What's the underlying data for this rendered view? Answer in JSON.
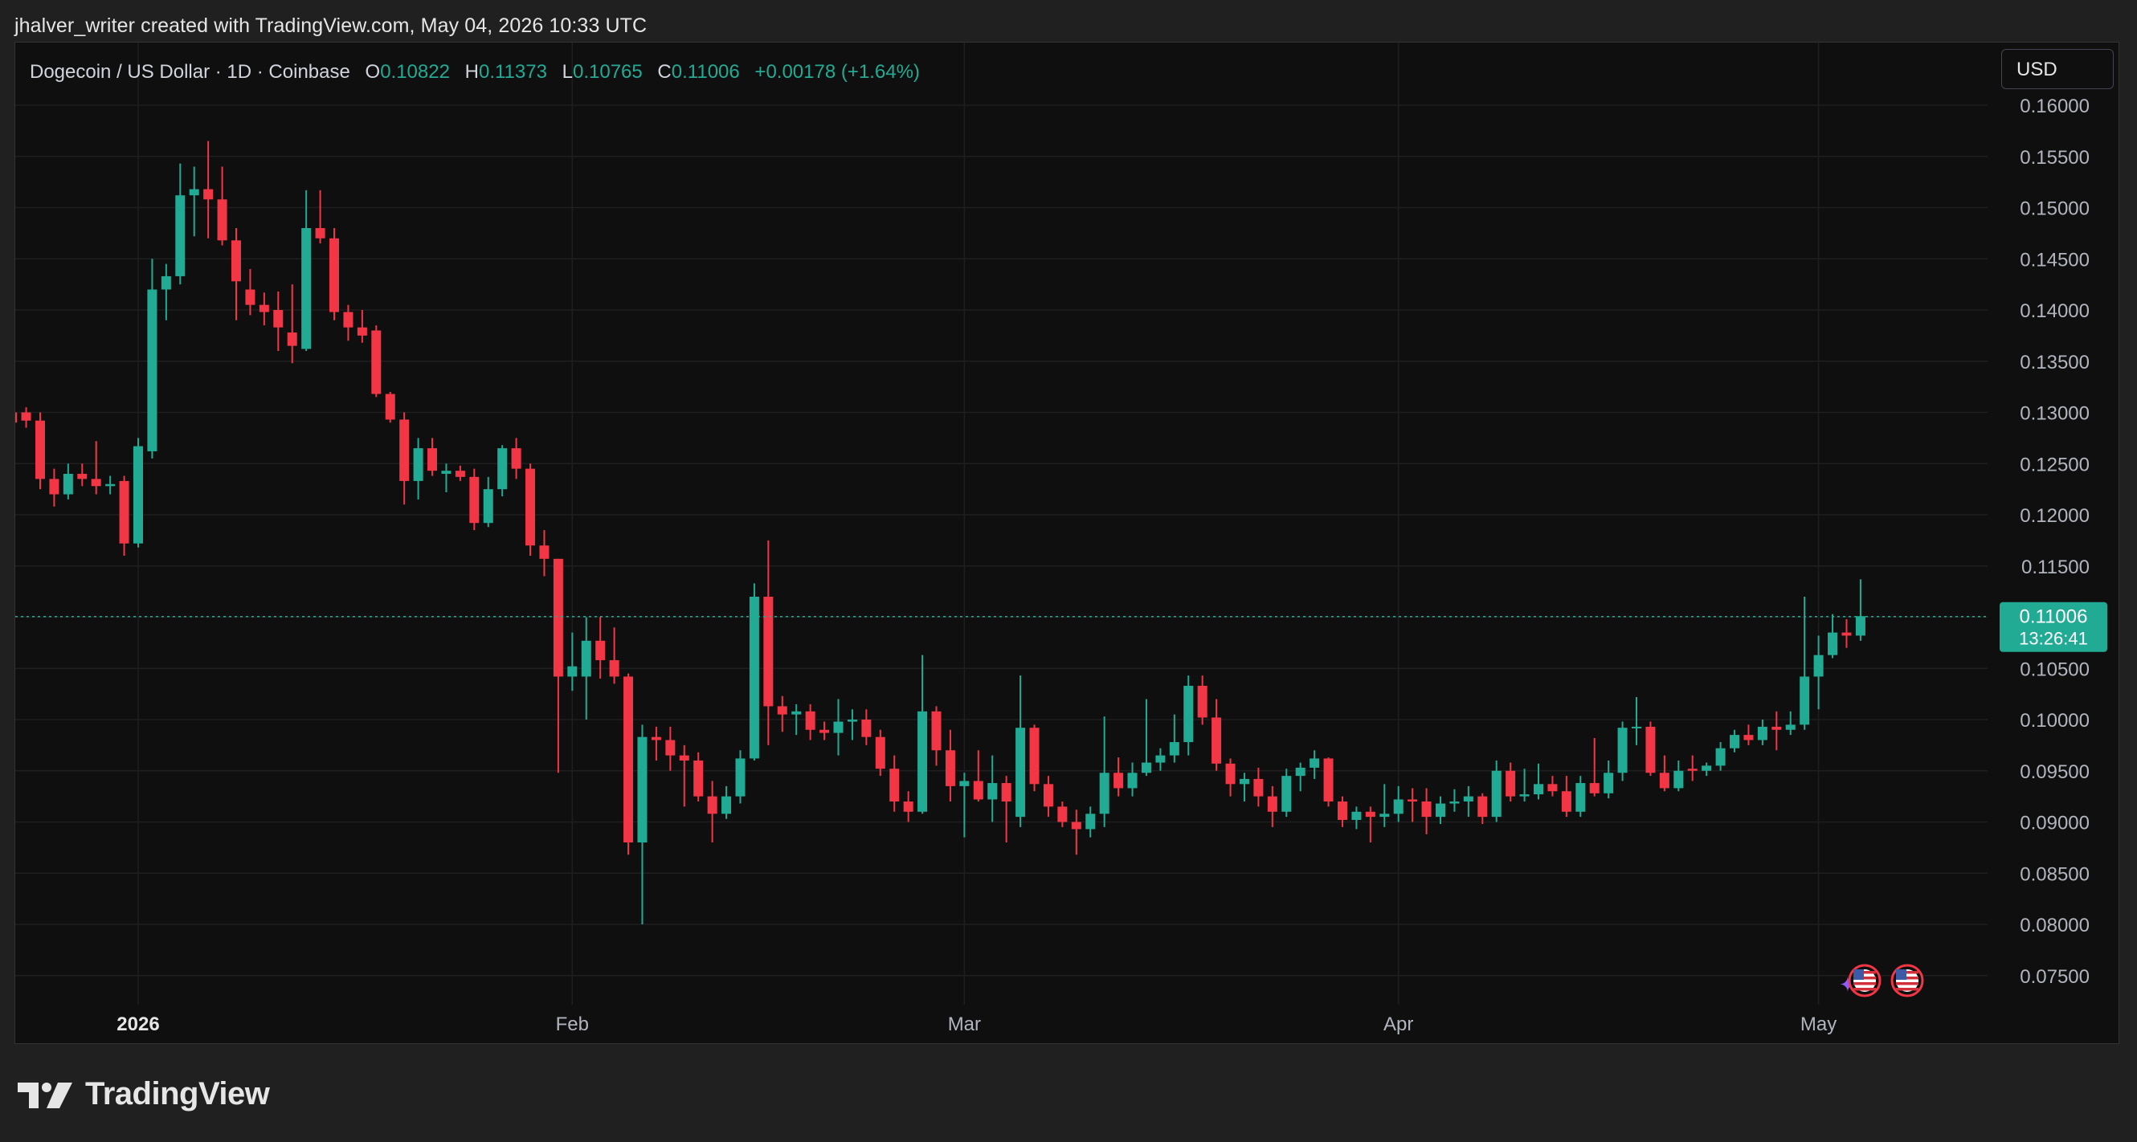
{
  "caption": "jhalver_writer created with TradingView.com, May 04, 2026 10:33 UTC",
  "legend": {
    "symbol": "Dogecoin / US Dollar · 1D · Coinbase",
    "o_label": "O",
    "o_value": "0.10822",
    "h_label": "H",
    "h_value": "0.11373",
    "l_label": "L",
    "l_value": "0.10765",
    "c_label": "C",
    "c_value": "0.11006",
    "change": "+0.00178 (+1.64%)"
  },
  "currency_button": "USD",
  "price_tag": {
    "price": "0.11006",
    "countdown": "13:26:41"
  },
  "brand": "TradingView",
  "colors": {
    "up": "#22ab94",
    "down": "#f23645",
    "background": "#0f0f0f",
    "grid": "#1f1f1f",
    "axis_text": "#b2b5be"
  },
  "chart_data": {
    "type": "candlestick",
    "title": "Dogecoin / US Dollar · 1D · Coinbase",
    "ylim": [
      0.073,
      0.164
    ],
    "y_ticks": [
      "0.16000",
      "0.15500",
      "0.15000",
      "0.14500",
      "0.14000",
      "0.13500",
      "0.13000",
      "0.12500",
      "0.12000",
      "0.11500",
      "0.11000",
      "0.10500",
      "0.10000",
      "0.09500",
      "0.09000",
      "0.08500",
      "0.08000",
      "0.07500"
    ],
    "x_labels": [
      {
        "label": "2026",
        "date": "2026-01-01",
        "bold": true
      },
      {
        "label": "Feb",
        "date": "2026-02-01",
        "bold": false
      },
      {
        "label": "Mar",
        "date": "2026-03-01",
        "bold": false
      },
      {
        "label": "Apr",
        "date": "2026-04-01",
        "bold": false
      },
      {
        "label": "May",
        "date": "2026-05-01",
        "bold": false
      }
    ],
    "last_price": 0.11006,
    "grid": true,
    "candles": [
      {
        "date": "2025-12-23",
        "o": 0.13,
        "h": 0.1325,
        "l": 0.1295,
        "c": 0.129
      },
      {
        "date": "2025-12-24",
        "o": 0.13,
        "h": 0.1305,
        "l": 0.1285,
        "c": 0.1292
      },
      {
        "date": "2025-12-25",
        "o": 0.1292,
        "h": 0.13,
        "l": 0.1225,
        "c": 0.1235
      },
      {
        "date": "2025-12-26",
        "o": 0.1235,
        "h": 0.1245,
        "l": 0.1208,
        "c": 0.122
      },
      {
        "date": "2025-12-27",
        "o": 0.122,
        "h": 0.125,
        "l": 0.1215,
        "c": 0.124
      },
      {
        "date": "2025-12-28",
        "o": 0.124,
        "h": 0.125,
        "l": 0.1228,
        "c": 0.1235
      },
      {
        "date": "2025-12-29",
        "o": 0.1235,
        "h": 0.1272,
        "l": 0.122,
        "c": 0.1228
      },
      {
        "date": "2025-12-30",
        "o": 0.1228,
        "h": 0.1238,
        "l": 0.122,
        "c": 0.123
      },
      {
        "date": "2025-12-31",
        "o": 0.1233,
        "h": 0.1238,
        "l": 0.116,
        "c": 0.1172
      },
      {
        "date": "2026-01-01",
        "o": 0.1172,
        "h": 0.1275,
        "l": 0.1168,
        "c": 0.1267
      },
      {
        "date": "2026-01-02",
        "o": 0.1262,
        "h": 0.145,
        "l": 0.1255,
        "c": 0.142
      },
      {
        "date": "2026-01-03",
        "o": 0.142,
        "h": 0.1445,
        "l": 0.139,
        "c": 0.1433
      },
      {
        "date": "2026-01-04",
        "o": 0.1433,
        "h": 0.1543,
        "l": 0.1425,
        "c": 0.1512
      },
      {
        "date": "2026-01-05",
        "o": 0.1512,
        "h": 0.154,
        "l": 0.1472,
        "c": 0.1518
      },
      {
        "date": "2026-01-06",
        "o": 0.1518,
        "h": 0.1565,
        "l": 0.147,
        "c": 0.1508
      },
      {
        "date": "2026-01-07",
        "o": 0.1508,
        "h": 0.154,
        "l": 0.1463,
        "c": 0.1468
      },
      {
        "date": "2026-01-08",
        "o": 0.1468,
        "h": 0.148,
        "l": 0.139,
        "c": 0.1428
      },
      {
        "date": "2026-01-09",
        "o": 0.142,
        "h": 0.144,
        "l": 0.1395,
        "c": 0.1405
      },
      {
        "date": "2026-01-10",
        "o": 0.1405,
        "h": 0.1417,
        "l": 0.1385,
        "c": 0.1398
      },
      {
        "date": "2026-01-11",
        "o": 0.14,
        "h": 0.1418,
        "l": 0.136,
        "c": 0.1383
      },
      {
        "date": "2026-01-12",
        "o": 0.1378,
        "h": 0.1425,
        "l": 0.1348,
        "c": 0.1365
      },
      {
        "date": "2026-01-13",
        "o": 0.1362,
        "h": 0.1517,
        "l": 0.136,
        "c": 0.148
      },
      {
        "date": "2026-01-14",
        "o": 0.148,
        "h": 0.1517,
        "l": 0.1465,
        "c": 0.147
      },
      {
        "date": "2026-01-15",
        "o": 0.147,
        "h": 0.148,
        "l": 0.139,
        "c": 0.1398
      },
      {
        "date": "2026-01-16",
        "o": 0.1398,
        "h": 0.1405,
        "l": 0.137,
        "c": 0.1383
      },
      {
        "date": "2026-01-17",
        "o": 0.1383,
        "h": 0.14,
        "l": 0.1368,
        "c": 0.1375
      },
      {
        "date": "2026-01-18",
        "o": 0.138,
        "h": 0.1385,
        "l": 0.1315,
        "c": 0.1318
      },
      {
        "date": "2026-01-19",
        "o": 0.1318,
        "h": 0.132,
        "l": 0.129,
        "c": 0.1293
      },
      {
        "date": "2026-01-20",
        "o": 0.1293,
        "h": 0.13,
        "l": 0.121,
        "c": 0.1233
      },
      {
        "date": "2026-01-21",
        "o": 0.1233,
        "h": 0.1275,
        "l": 0.1215,
        "c": 0.1265
      },
      {
        "date": "2026-01-22",
        "o": 0.1265,
        "h": 0.1275,
        "l": 0.1238,
        "c": 0.1243
      },
      {
        "date": "2026-01-23",
        "o": 0.124,
        "h": 0.125,
        "l": 0.1222,
        "c": 0.1243
      },
      {
        "date": "2026-01-24",
        "o": 0.1243,
        "h": 0.1248,
        "l": 0.1233,
        "c": 0.1237
      },
      {
        "date": "2026-01-25",
        "o": 0.1237,
        "h": 0.1245,
        "l": 0.1185,
        "c": 0.1192
      },
      {
        "date": "2026-01-26",
        "o": 0.1192,
        "h": 0.1237,
        "l": 0.1188,
        "c": 0.1225
      },
      {
        "date": "2026-01-27",
        "o": 0.1225,
        "h": 0.1268,
        "l": 0.1218,
        "c": 0.1265
      },
      {
        "date": "2026-01-28",
        "o": 0.1265,
        "h": 0.1275,
        "l": 0.1235,
        "c": 0.1245
      },
      {
        "date": "2026-01-29",
        "o": 0.1245,
        "h": 0.125,
        "l": 0.116,
        "c": 0.117
      },
      {
        "date": "2026-01-30",
        "o": 0.117,
        "h": 0.1185,
        "l": 0.114,
        "c": 0.1157
      },
      {
        "date": "2026-01-31",
        "o": 0.1157,
        "h": 0.1157,
        "l": 0.0948,
        "c": 0.1042
      },
      {
        "date": "2026-02-01",
        "o": 0.1042,
        "h": 0.1085,
        "l": 0.1028,
        "c": 0.1052
      },
      {
        "date": "2026-02-02",
        "o": 0.1042,
        "h": 0.11,
        "l": 0.1,
        "c": 0.1077
      },
      {
        "date": "2026-02-03",
        "o": 0.1077,
        "h": 0.11,
        "l": 0.104,
        "c": 0.1058
      },
      {
        "date": "2026-02-04",
        "o": 0.1058,
        "h": 0.109,
        "l": 0.1035,
        "c": 0.1042
      },
      {
        "date": "2026-02-05",
        "o": 0.1042,
        "h": 0.1045,
        "l": 0.0868,
        "c": 0.088
      },
      {
        "date": "2026-02-06",
        "o": 0.088,
        "h": 0.0995,
        "l": 0.08,
        "c": 0.0983
      },
      {
        "date": "2026-02-07",
        "o": 0.0983,
        "h": 0.0993,
        "l": 0.096,
        "c": 0.098
      },
      {
        "date": "2026-02-08",
        "o": 0.098,
        "h": 0.0993,
        "l": 0.095,
        "c": 0.0965
      },
      {
        "date": "2026-02-09",
        "o": 0.0965,
        "h": 0.0975,
        "l": 0.0915,
        "c": 0.096
      },
      {
        "date": "2026-02-10",
        "o": 0.096,
        "h": 0.0968,
        "l": 0.092,
        "c": 0.0925
      },
      {
        "date": "2026-02-11",
        "o": 0.0925,
        "h": 0.094,
        "l": 0.088,
        "c": 0.0908
      },
      {
        "date": "2026-02-12",
        "o": 0.0908,
        "h": 0.0935,
        "l": 0.0903,
        "c": 0.0925
      },
      {
        "date": "2026-02-13",
        "o": 0.0925,
        "h": 0.097,
        "l": 0.0918,
        "c": 0.0962
      },
      {
        "date": "2026-02-14",
        "o": 0.0962,
        "h": 0.1133,
        "l": 0.096,
        "c": 0.112
      },
      {
        "date": "2026-02-15",
        "o": 0.112,
        "h": 0.1175,
        "l": 0.0975,
        "c": 0.1013
      },
      {
        "date": "2026-02-16",
        "o": 0.1013,
        "h": 0.1023,
        "l": 0.0988,
        "c": 0.1005
      },
      {
        "date": "2026-02-17",
        "o": 0.1005,
        "h": 0.1015,
        "l": 0.0985,
        "c": 0.1008
      },
      {
        "date": "2026-02-18",
        "o": 0.1008,
        "h": 0.1015,
        "l": 0.098,
        "c": 0.099
      },
      {
        "date": "2026-02-19",
        "o": 0.099,
        "h": 0.0998,
        "l": 0.098,
        "c": 0.0987
      },
      {
        "date": "2026-02-20",
        "o": 0.0987,
        "h": 0.102,
        "l": 0.0965,
        "c": 0.0998
      },
      {
        "date": "2026-02-21",
        "o": 0.0998,
        "h": 0.101,
        "l": 0.098,
        "c": 0.1
      },
      {
        "date": "2026-02-22",
        "o": 0.1,
        "h": 0.101,
        "l": 0.0975,
        "c": 0.0983
      },
      {
        "date": "2026-02-23",
        "o": 0.0983,
        "h": 0.099,
        "l": 0.0945,
        "c": 0.0952
      },
      {
        "date": "2026-02-24",
        "o": 0.0952,
        "h": 0.0965,
        "l": 0.091,
        "c": 0.092
      },
      {
        "date": "2026-02-25",
        "o": 0.092,
        "h": 0.093,
        "l": 0.09,
        "c": 0.091
      },
      {
        "date": "2026-02-26",
        "o": 0.091,
        "h": 0.1063,
        "l": 0.0908,
        "c": 0.1008
      },
      {
        "date": "2026-02-27",
        "o": 0.1008,
        "h": 0.1013,
        "l": 0.0955,
        "c": 0.097
      },
      {
        "date": "2026-02-28",
        "o": 0.097,
        "h": 0.099,
        "l": 0.092,
        "c": 0.0935
      },
      {
        "date": "2026-03-01",
        "o": 0.0935,
        "h": 0.0948,
        "l": 0.0885,
        "c": 0.094
      },
      {
        "date": "2026-03-02",
        "o": 0.094,
        "h": 0.097,
        "l": 0.092,
        "c": 0.0922
      },
      {
        "date": "2026-03-03",
        "o": 0.0922,
        "h": 0.0965,
        "l": 0.09,
        "c": 0.0938
      },
      {
        "date": "2026-03-04",
        "o": 0.0938,
        "h": 0.0945,
        "l": 0.088,
        "c": 0.092
      },
      {
        "date": "2026-03-05",
        "o": 0.0905,
        "h": 0.1043,
        "l": 0.0895,
        "c": 0.0992
      },
      {
        "date": "2026-03-06",
        "o": 0.0992,
        "h": 0.0995,
        "l": 0.093,
        "c": 0.0937
      },
      {
        "date": "2026-03-07",
        "o": 0.0937,
        "h": 0.0945,
        "l": 0.0905,
        "c": 0.0915
      },
      {
        "date": "2026-03-08",
        "o": 0.0915,
        "h": 0.092,
        "l": 0.0895,
        "c": 0.09
      },
      {
        "date": "2026-03-09",
        "o": 0.09,
        "h": 0.0912,
        "l": 0.0868,
        "c": 0.0893
      },
      {
        "date": "2026-03-10",
        "o": 0.0893,
        "h": 0.0915,
        "l": 0.0885,
        "c": 0.0908
      },
      {
        "date": "2026-03-11",
        "o": 0.0908,
        "h": 0.1003,
        "l": 0.0895,
        "c": 0.0948
      },
      {
        "date": "2026-03-12",
        "o": 0.0948,
        "h": 0.0963,
        "l": 0.0925,
        "c": 0.0933
      },
      {
        "date": "2026-03-13",
        "o": 0.0933,
        "h": 0.0958,
        "l": 0.0925,
        "c": 0.0948
      },
      {
        "date": "2026-03-14",
        "o": 0.0948,
        "h": 0.102,
        "l": 0.0945,
        "c": 0.0958
      },
      {
        "date": "2026-03-15",
        "o": 0.0958,
        "h": 0.0972,
        "l": 0.095,
        "c": 0.0965
      },
      {
        "date": "2026-03-16",
        "o": 0.0965,
        "h": 0.1005,
        "l": 0.0958,
        "c": 0.0978
      },
      {
        "date": "2026-03-17",
        "o": 0.0978,
        "h": 0.1043,
        "l": 0.0965,
        "c": 0.1033
      },
      {
        "date": "2026-03-18",
        "o": 0.1033,
        "h": 0.1043,
        "l": 0.0995,
        "c": 0.1002
      },
      {
        "date": "2026-03-19",
        "o": 0.1002,
        "h": 0.102,
        "l": 0.095,
        "c": 0.0957
      },
      {
        "date": "2026-03-20",
        "o": 0.0957,
        "h": 0.0962,
        "l": 0.0925,
        "c": 0.0937
      },
      {
        "date": "2026-03-21",
        "o": 0.0937,
        "h": 0.0948,
        "l": 0.092,
        "c": 0.0942
      },
      {
        "date": "2026-03-22",
        "o": 0.0942,
        "h": 0.0953,
        "l": 0.0915,
        "c": 0.0925
      },
      {
        "date": "2026-03-23",
        "o": 0.0925,
        "h": 0.0935,
        "l": 0.0895,
        "c": 0.091
      },
      {
        "date": "2026-03-24",
        "o": 0.091,
        "h": 0.0952,
        "l": 0.0905,
        "c": 0.0945
      },
      {
        "date": "2026-03-25",
        "o": 0.0945,
        "h": 0.0958,
        "l": 0.093,
        "c": 0.0953
      },
      {
        "date": "2026-03-26",
        "o": 0.0953,
        "h": 0.097,
        "l": 0.0942,
        "c": 0.0962
      },
      {
        "date": "2026-03-27",
        "o": 0.0962,
        "h": 0.0963,
        "l": 0.0915,
        "c": 0.092
      },
      {
        "date": "2026-03-28",
        "o": 0.092,
        "h": 0.0925,
        "l": 0.0895,
        "c": 0.0902
      },
      {
        "date": "2026-03-29",
        "o": 0.0902,
        "h": 0.0915,
        "l": 0.0893,
        "c": 0.091
      },
      {
        "date": "2026-03-30",
        "o": 0.091,
        "h": 0.0915,
        "l": 0.088,
        "c": 0.0905
      },
      {
        "date": "2026-03-31",
        "o": 0.0905,
        "h": 0.0937,
        "l": 0.0895,
        "c": 0.0908
      },
      {
        "date": "2026-04-01",
        "o": 0.0908,
        "h": 0.0935,
        "l": 0.09,
        "c": 0.0922
      },
      {
        "date": "2026-04-02",
        "o": 0.0922,
        "h": 0.0933,
        "l": 0.09,
        "c": 0.092
      },
      {
        "date": "2026-04-03",
        "o": 0.092,
        "h": 0.0933,
        "l": 0.0888,
        "c": 0.0905
      },
      {
        "date": "2026-04-04",
        "o": 0.0905,
        "h": 0.0925,
        "l": 0.0898,
        "c": 0.0918
      },
      {
        "date": "2026-04-05",
        "o": 0.0918,
        "h": 0.0932,
        "l": 0.091,
        "c": 0.092
      },
      {
        "date": "2026-04-06",
        "o": 0.092,
        "h": 0.0935,
        "l": 0.0905,
        "c": 0.0925
      },
      {
        "date": "2026-04-07",
        "o": 0.0925,
        "h": 0.0928,
        "l": 0.0898,
        "c": 0.0905
      },
      {
        "date": "2026-04-08",
        "o": 0.0905,
        "h": 0.096,
        "l": 0.09,
        "c": 0.095
      },
      {
        "date": "2026-04-09",
        "o": 0.095,
        "h": 0.0958,
        "l": 0.092,
        "c": 0.0925
      },
      {
        "date": "2026-04-10",
        "o": 0.0925,
        "h": 0.0952,
        "l": 0.092,
        "c": 0.0927
      },
      {
        "date": "2026-04-11",
        "o": 0.0927,
        "h": 0.0957,
        "l": 0.0922,
        "c": 0.0937
      },
      {
        "date": "2026-04-12",
        "o": 0.0937,
        "h": 0.0945,
        "l": 0.0925,
        "c": 0.093
      },
      {
        "date": "2026-04-13",
        "o": 0.093,
        "h": 0.0945,
        "l": 0.0905,
        "c": 0.091
      },
      {
        "date": "2026-04-14",
        "o": 0.091,
        "h": 0.0945,
        "l": 0.0905,
        "c": 0.0938
      },
      {
        "date": "2026-04-15",
        "o": 0.0938,
        "h": 0.0982,
        "l": 0.0925,
        "c": 0.0928
      },
      {
        "date": "2026-04-16",
        "o": 0.0928,
        "h": 0.096,
        "l": 0.0923,
        "c": 0.0948
      },
      {
        "date": "2026-04-17",
        "o": 0.0948,
        "h": 0.0998,
        "l": 0.094,
        "c": 0.0992
      },
      {
        "date": "2026-04-18",
        "o": 0.0992,
        "h": 0.1022,
        "l": 0.0975,
        "c": 0.0993
      },
      {
        "date": "2026-04-19",
        "o": 0.0993,
        "h": 0.0998,
        "l": 0.0945,
        "c": 0.0948
      },
      {
        "date": "2026-04-20",
        "o": 0.0948,
        "h": 0.0965,
        "l": 0.093,
        "c": 0.0933
      },
      {
        "date": "2026-04-21",
        "o": 0.0933,
        "h": 0.096,
        "l": 0.093,
        "c": 0.095
      },
      {
        "date": "2026-04-22",
        "o": 0.0952,
        "h": 0.0965,
        "l": 0.094,
        "c": 0.095
      },
      {
        "date": "2026-04-23",
        "o": 0.095,
        "h": 0.0958,
        "l": 0.0945,
        "c": 0.0955
      },
      {
        "date": "2026-04-24",
        "o": 0.0955,
        "h": 0.0978,
        "l": 0.095,
        "c": 0.0972
      },
      {
        "date": "2026-04-25",
        "o": 0.0972,
        "h": 0.099,
        "l": 0.0968,
        "c": 0.0985
      },
      {
        "date": "2026-04-26",
        "o": 0.0985,
        "h": 0.0995,
        "l": 0.0975,
        "c": 0.098
      },
      {
        "date": "2026-04-27",
        "o": 0.098,
        "h": 0.1,
        "l": 0.0975,
        "c": 0.0993
      },
      {
        "date": "2026-04-28",
        "o": 0.0993,
        "h": 0.1008,
        "l": 0.097,
        "c": 0.099
      },
      {
        "date": "2026-04-29",
        "o": 0.099,
        "h": 0.1008,
        "l": 0.0985,
        "c": 0.0995
      },
      {
        "date": "2026-04-30",
        "o": 0.0995,
        "h": 0.112,
        "l": 0.099,
        "c": 0.1042
      },
      {
        "date": "2026-05-01",
        "o": 0.1042,
        "h": 0.1082,
        "l": 0.101,
        "c": 0.1063
      },
      {
        "date": "2026-05-02",
        "o": 0.1063,
        "h": 0.1103,
        "l": 0.106,
        "c": 0.1085
      },
      {
        "date": "2026-05-03",
        "o": 0.1085,
        "h": 0.1098,
        "l": 0.107,
        "c": 0.1082
      },
      {
        "date": "2026-05-04",
        "o": 0.1082,
        "h": 0.1137,
        "l": 0.1077,
        "c": 0.1101
      }
    ]
  }
}
